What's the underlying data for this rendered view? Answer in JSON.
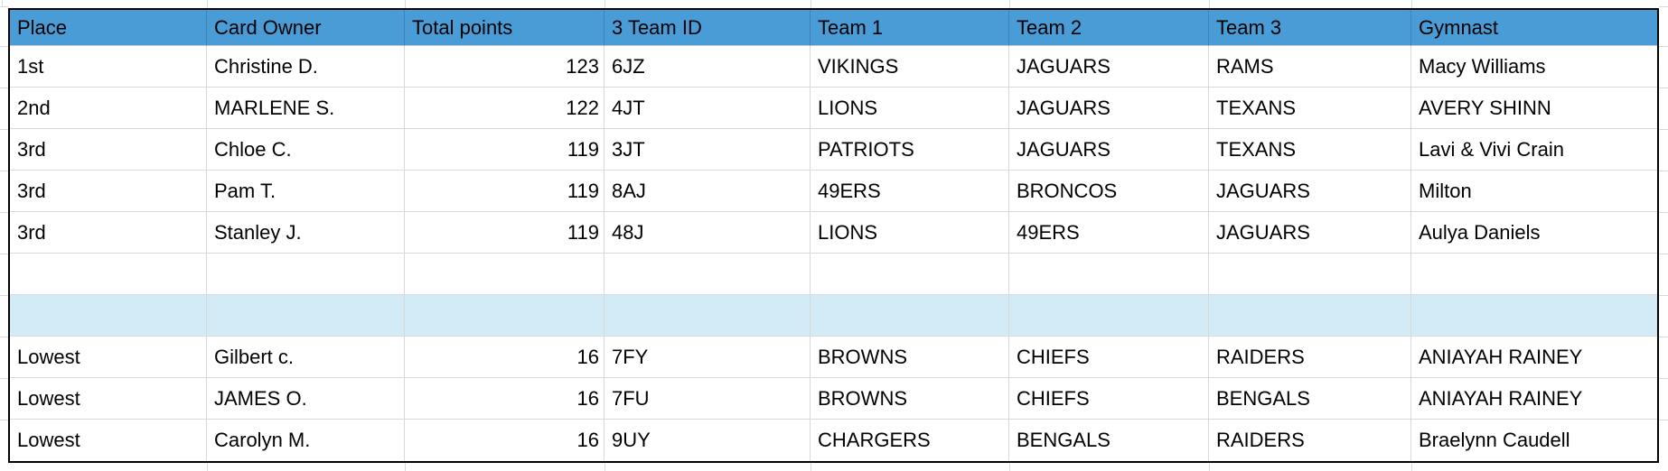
{
  "colors": {
    "header_bg": "#4a9cd6",
    "separator_bg": "#d3eaf7",
    "gridline": "#d9d9d9",
    "outer_border": "#000000",
    "text": "#000000"
  },
  "table": {
    "headers": [
      "Place",
      "Card Owner",
      "Total points",
      "3 Team ID",
      "Team 1",
      "Team 2",
      "Team 3",
      "Gymnast"
    ],
    "numeric_column_index": 2,
    "rows": [
      {
        "type": "data",
        "cells": [
          "1st",
          "Christine D.",
          "123",
          "6JZ",
          "VIKINGS",
          "JAGUARS",
          "RAMS",
          "Macy Williams"
        ]
      },
      {
        "type": "data",
        "cells": [
          "2nd",
          "MARLENE S.",
          "122",
          "4JT",
          "LIONS",
          "JAGUARS",
          "TEXANS",
          "AVERY SHINN"
        ]
      },
      {
        "type": "data",
        "cells": [
          "3rd",
          "Chloe C.",
          "119",
          "3JT",
          "PATRIOTS",
          "JAGUARS",
          "TEXANS",
          "Lavi & Vivi Crain"
        ]
      },
      {
        "type": "data",
        "cells": [
          "3rd",
          "Pam T.",
          "119",
          "8AJ",
          "49ERS",
          "BRONCOS",
          "JAGUARS",
          "Milton"
        ]
      },
      {
        "type": "data",
        "cells": [
          "3rd",
          "Stanley J.",
          "119",
          "48J",
          "LIONS",
          "49ERS",
          "JAGUARS",
          "Aulya Daniels"
        ]
      },
      {
        "type": "empty",
        "cells": [
          "",
          "",
          "",
          "",
          "",
          "",
          "",
          ""
        ]
      },
      {
        "type": "separator",
        "cells": [
          "",
          "",
          "",
          "",
          "",
          "",
          "",
          ""
        ]
      },
      {
        "type": "data",
        "cells": [
          "Lowest",
          "Gilbert c.",
          "16",
          "7FY",
          "BROWNS",
          "CHIEFS",
          "RAIDERS",
          "ANIAYAH RAINEY"
        ]
      },
      {
        "type": "data",
        "cells": [
          "Lowest",
          "JAMES O.",
          "16",
          "7FU",
          "BROWNS",
          "CHIEFS",
          "BENGALS",
          "ANIAYAH RAINEY"
        ]
      },
      {
        "type": "data",
        "cells": [
          "Lowest",
          "Carolyn M.",
          "16",
          "9UY",
          "CHARGERS",
          "BENGALS",
          "RAIDERS",
          "Braelynn Caudell"
        ]
      }
    ]
  }
}
